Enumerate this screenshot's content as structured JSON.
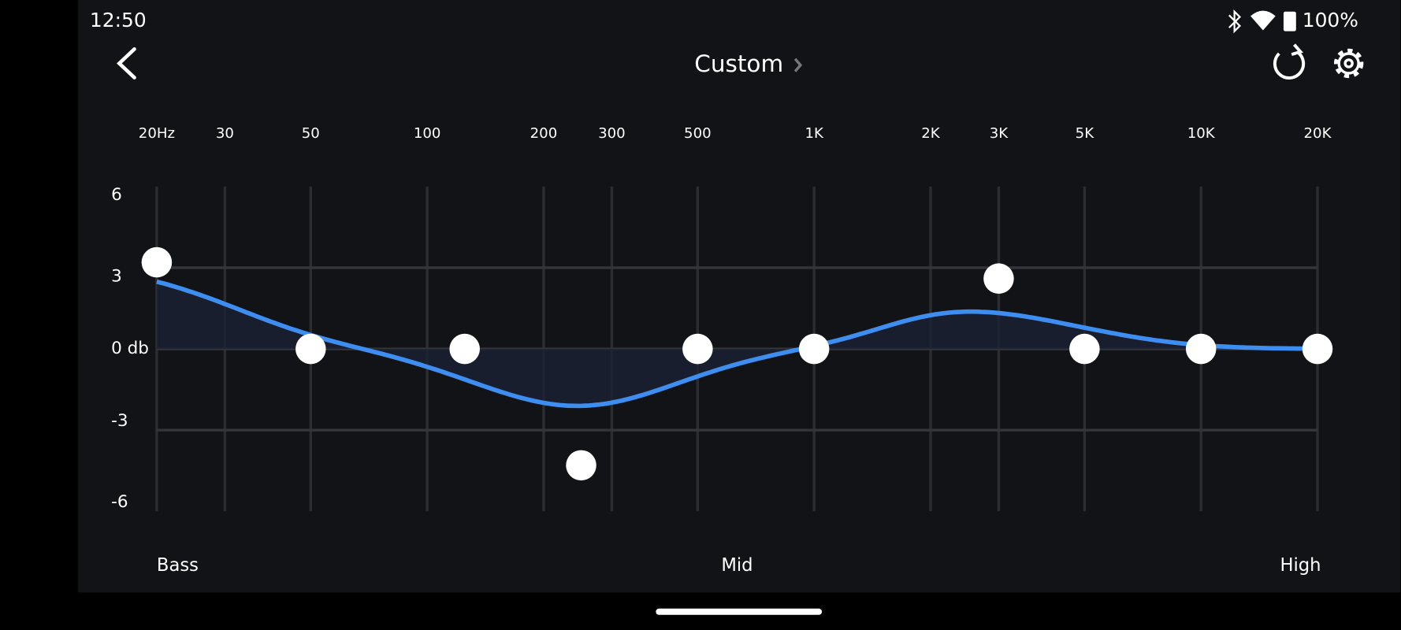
{
  "status_bar": {
    "time": "12:50",
    "battery": "100%"
  },
  "header": {
    "title": "Custom"
  },
  "chart_data": {
    "type": "scatter",
    "x": [
      20,
      50,
      125,
      250,
      500,
      1000,
      3000,
      5000,
      10000,
      20000
    ],
    "values": [
      3.2,
      0,
      0,
      -4.3,
      0,
      0,
      2.6,
      0,
      0,
      0
    ],
    "color": "#ffffff",
    "curve_color": "#3d8ef0",
    "xlim": [
      20,
      20000
    ],
    "xscale": "log",
    "xticks": [
      {
        "value": 20,
        "label": "20Hz"
      },
      30,
      50,
      100,
      200,
      300,
      500,
      {
        "value": 1000,
        "label": "1K"
      },
      {
        "value": 2000,
        "label": "2K"
      },
      {
        "value": 3000,
        "label": "3K"
      },
      {
        "value": 5000,
        "label": "5K"
      },
      {
        "value": 10000,
        "label": "10K"
      },
      {
        "value": 20000,
        "label": "20K"
      }
    ],
    "ylim": [
      -6,
      6
    ],
    "yticks": [
      -6,
      -3,
      {
        "value": 0,
        "label": "0 db"
      },
      3,
      6
    ],
    "grid": true,
    "band_labels": [
      "Bass",
      "Mid",
      "High"
    ]
  }
}
